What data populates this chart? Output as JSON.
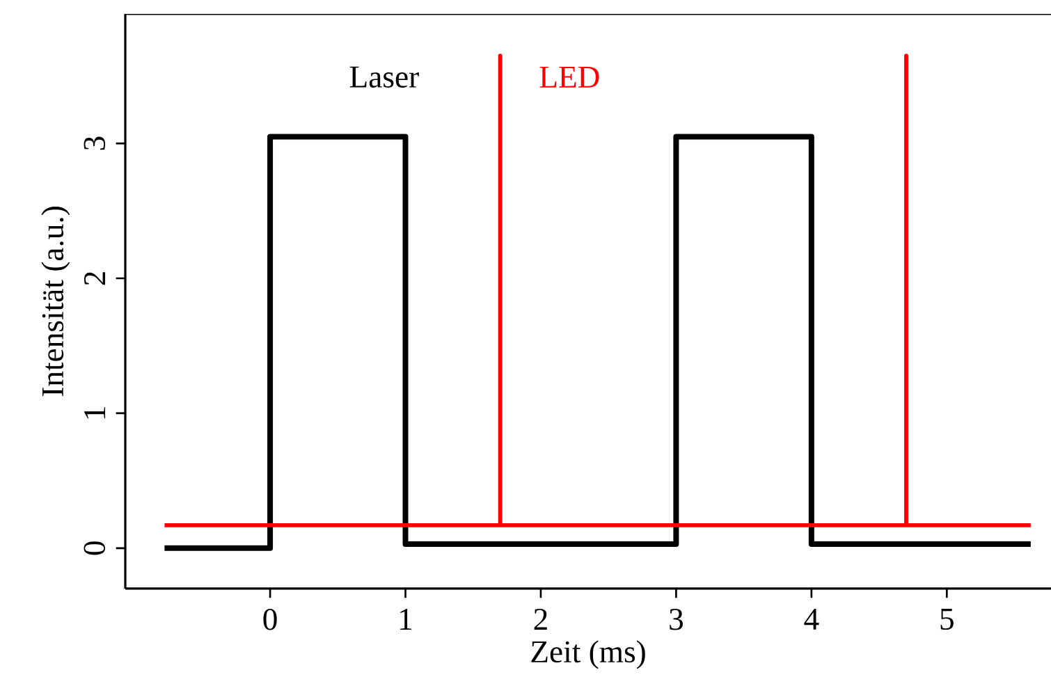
{
  "chart_data": {
    "type": "line",
    "xlabel": "Zeit (ms)",
    "ylabel": "Intensität (a.u.)",
    "xlim": [
      -1.07,
      5.77
    ],
    "ylim": [
      -0.3,
      3.96
    ],
    "xticks": [
      0,
      1,
      2,
      3,
      4,
      5
    ],
    "yticks": [
      0,
      1,
      2,
      3
    ],
    "series": [
      {
        "name": "Laser",
        "color": "#000000",
        "x": [
          -0.78,
          0,
          0,
          1,
          1,
          3,
          3,
          4,
          4,
          5.62
        ],
        "values": [
          0,
          0,
          3.05,
          3.05,
          0.03,
          0.03,
          3.05,
          3.05,
          0.03,
          0.03
        ]
      },
      {
        "name": "LED",
        "color": "#ff0000",
        "x": [
          -0.78,
          1.7,
          1.7,
          1.7,
          4.7,
          4.7,
          4.7,
          5.62
        ],
        "values": [
          0.17,
          0.17,
          3.65,
          0.17,
          0.17,
          3.65,
          0.17,
          0.17
        ]
      }
    ],
    "grid": false,
    "legend": false,
    "marker": "none",
    "line_style": "solid"
  }
}
